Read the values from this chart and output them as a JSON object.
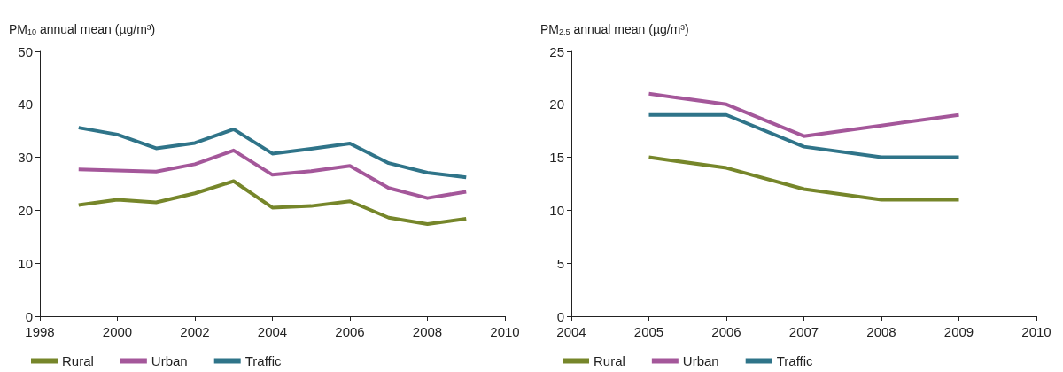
{
  "chart_data": [
    {
      "type": "line",
      "ylabel": "PM$_{10}$ annual mean (µg/m³)",
      "x": [
        1999,
        2000,
        2001,
        2002,
        2003,
        2004,
        2005,
        2006,
        2007,
        2008,
        2009
      ],
      "series": [
        {
          "name": "Rural",
          "color": "#76862a",
          "values": [
            21.0,
            22.0,
            21.5,
            23.2,
            25.5,
            20.5,
            20.8,
            21.7,
            18.6,
            17.4,
            18.4
          ]
        },
        {
          "name": "Urban",
          "color": "#a4579a",
          "values": [
            27.7,
            27.5,
            27.3,
            28.7,
            31.3,
            26.7,
            27.4,
            28.4,
            24.2,
            22.3,
            23.5
          ]
        },
        {
          "name": "Traffic",
          "color": "#2f7489",
          "values": [
            35.6,
            34.3,
            31.7,
            32.7,
            35.3,
            30.7,
            31.6,
            32.6,
            28.9,
            27.1,
            26.2
          ]
        }
      ],
      "xlim": [
        1998,
        2010
      ],
      "xticks": [
        1998,
        2000,
        2002,
        2004,
        2006,
        2008,
        2010
      ],
      "ylim": [
        0,
        50
      ],
      "yticks": [
        0,
        10,
        20,
        30,
        40,
        50
      ],
      "grid": false,
      "legend": "bottom",
      "marker": "none",
      "line_style": "solid"
    },
    {
      "type": "line",
      "ylabel": "PM$_{2.5}$ annual mean (µg/m³)",
      "x": [
        2005,
        2006,
        2007,
        2008,
        2009
      ],
      "series": [
        {
          "name": "Rural",
          "color": "#76862a",
          "values": [
            15,
            14,
            12,
            11,
            11
          ]
        },
        {
          "name": "Urban",
          "color": "#a4579a",
          "values": [
            21,
            20,
            17,
            18,
            19
          ]
        },
        {
          "name": "Traffic",
          "color": "#2f7489",
          "values": [
            19,
            19,
            16,
            15,
            15
          ]
        }
      ],
      "xlim": [
        2004,
        2010
      ],
      "xticks": [
        2004,
        2005,
        2006,
        2007,
        2008,
        2009,
        2010
      ],
      "ylim": [
        0,
        25
      ],
      "yticks": [
        0,
        5,
        10,
        15,
        20,
        25
      ],
      "grid": false,
      "legend": "bottom",
      "marker": "none",
      "line_style": "solid"
    }
  ]
}
